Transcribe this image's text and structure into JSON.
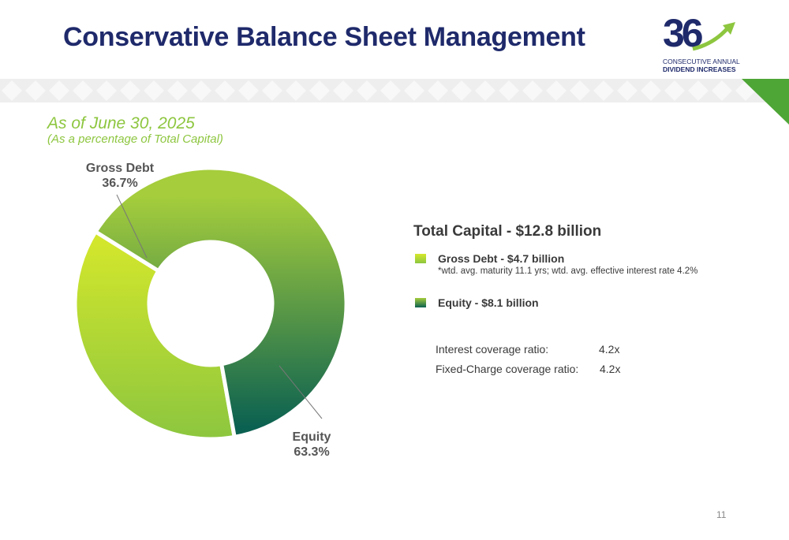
{
  "header": {
    "title": "Conservative Balance Sheet Management"
  },
  "logo": {
    "number": "36",
    "line1": "CONSECUTIVE ANNUAL",
    "line2": "DIVIDEND INCREASES"
  },
  "subtitle": {
    "line1": "As of June 30, 2025",
    "line2": "(As a percentage of Total Capital)"
  },
  "chart_data": {
    "type": "pie",
    "categories": [
      "Gross Debt",
      "Equity"
    ],
    "values": [
      36.7,
      63.3
    ],
    "value_labels": [
      "36.7%",
      "63.3%"
    ],
    "donut": true,
    "title": "",
    "colors": {
      "debt_light": "#d6e82b",
      "debt_dark": "#8cc63f",
      "equity_light": "#a5cd3c",
      "equity_dark": "#0b6151"
    }
  },
  "panel": {
    "title": "Total Capital - $12.8 billion",
    "legend": [
      {
        "label": "Gross Debt - $4.7 billion",
        "note": "*wtd. avg. maturity 11.1 yrs; wtd. avg. effective interest rate 4.2%"
      },
      {
        "label": "Equity - $8.1 billion"
      }
    ],
    "ratios": [
      {
        "label": "Interest coverage ratio:",
        "value": "4.2x"
      },
      {
        "label": "Fixed-Charge coverage ratio:",
        "value": "4.2x"
      }
    ]
  },
  "footer": {
    "page": "11"
  }
}
